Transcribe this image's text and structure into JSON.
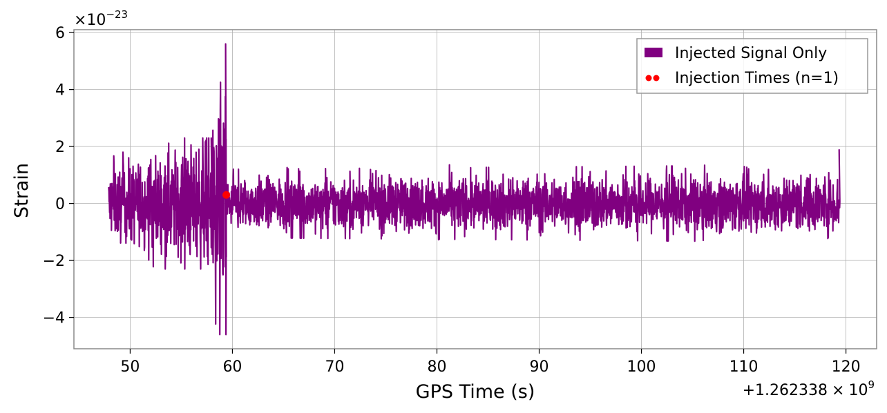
{
  "chart_data": {
    "type": "line",
    "title": "",
    "xlabel": "GPS Time (s)",
    "ylabel": "Strain",
    "x_offset_text": "+1.262338",
    "x_offset_times": "×",
    "x_offset_base": "10",
    "x_offset_exp": "9",
    "y_offset_prefix": "×10",
    "y_offset_exp": "−23",
    "xlim": [
      44.5,
      123
    ],
    "ylim": [
      -5.1,
      6.1
    ],
    "xticks": [
      50,
      60,
      70,
      80,
      90,
      100,
      110,
      120
    ],
    "yticks": [
      -4,
      -2,
      0,
      2,
      4,
      6
    ],
    "ytick_labels": [
      "−4",
      "−2",
      "0",
      "2",
      "4",
      "6"
    ],
    "grid": true,
    "legend_position": "top-right",
    "series": [
      {
        "name": "Injected Signal Only",
        "color": "#800080",
        "x_range": [
          47.9,
          119.4
        ],
        "segments": [
          {
            "x": [
              47.9,
              58.0
            ],
            "amplitude": [
              1.0,
              1.9
            ],
            "peak": 2.3
          },
          {
            "x": [
              58.0,
              59.4
            ],
            "amplitude": [
              2.0,
              4.5
            ],
            "peak": 5.6,
            "min": -4.6
          },
          {
            "x": [
              59.4,
              119.4
            ],
            "amplitude": [
              0.75,
              0.85
            ],
            "peak": 1.9
          }
        ]
      }
    ],
    "markers": [
      {
        "name": "Injection Times (n=1)",
        "color": "#ff0000",
        "points": [
          {
            "x": 59.4,
            "y": 0.3
          }
        ]
      }
    ]
  }
}
